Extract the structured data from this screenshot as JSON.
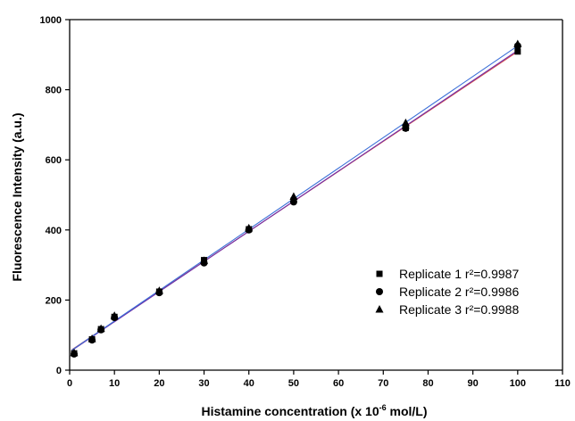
{
  "chart_data": {
    "type": "scatter",
    "xlabel": "Histamine concentration (x 10",
    "xlabel_exponent": "-6",
    "xlabel_suffix": " mol/L)",
    "ylabel": "Fluorescence Intensity (a.u.)",
    "xlim": [
      0,
      110
    ],
    "ylim": [
      0,
      1000
    ],
    "xticks": [
      0,
      10,
      20,
      30,
      40,
      50,
      60,
      70,
      80,
      90,
      100,
      110
    ],
    "yticks": [
      0,
      200,
      400,
      600,
      800,
      1000
    ],
    "grid": false,
    "legend_position": "bottom-right",
    "x": [
      1,
      5,
      7,
      10,
      20,
      30,
      40,
      50,
      75,
      100
    ],
    "series": [
      {
        "name": "Replicate 1 r²=0.9987",
        "marker": "square",
        "values": [
          48,
          88,
          117,
          152,
          224,
          314,
          402,
          484,
          691,
          909
        ],
        "fit": {
          "intercept": 54,
          "slope": 8.55,
          "color": "#d9534f"
        }
      },
      {
        "name": "Replicate 2 r²=0.9986",
        "marker": "circle",
        "values": [
          46,
          86,
          115,
          150,
          221,
          306,
          400,
          480,
          690,
          925
        ],
        "fit": {
          "intercept": 52,
          "slope": 8.6,
          "color": "#6f2da8"
        }
      },
      {
        "name": "Replicate 3 r²=0.9988",
        "marker": "triangle",
        "values": [
          49,
          89,
          118,
          155,
          226,
          312,
          405,
          495,
          705,
          930
        ],
        "fit": {
          "intercept": 53,
          "slope": 8.72,
          "color": "#3a6fd8"
        }
      }
    ]
  }
}
